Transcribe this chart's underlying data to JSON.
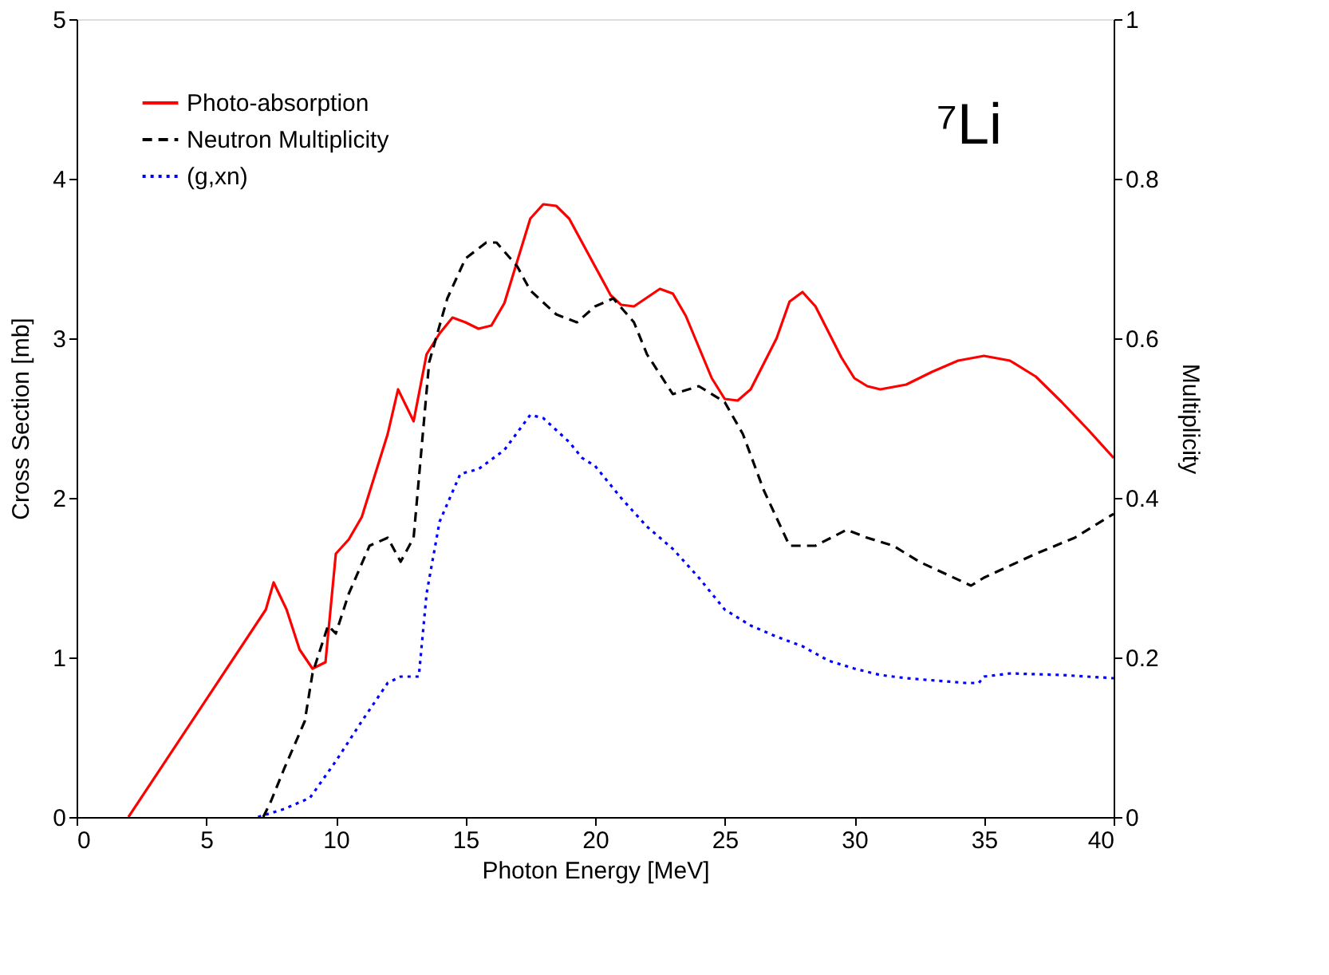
{
  "chart_data": {
    "type": "line",
    "xlabel": "Photon Energy [MeV]",
    "ylabel": "Cross Section [mb]",
    "y2label": "Multiplicity",
    "annotations": [
      "⁷Li"
    ],
    "xlim": [
      0,
      40
    ],
    "xticks": [
      0,
      5,
      10,
      15,
      20,
      25,
      30,
      35,
      40
    ],
    "ylim": [
      0,
      5
    ],
    "yticks": [
      0,
      1,
      2,
      3,
      4,
      5
    ],
    "y2lim": [
      0,
      1
    ],
    "y2ticks": [
      0,
      0.2,
      0.4,
      0.6,
      0.8,
      1
    ],
    "grid": false,
    "legend": "top left",
    "marker": "none",
    "series": [
      {
        "name": "Photo-absorption",
        "color": "#ff0000",
        "line_style": "solid",
        "x": [
          2,
          7.3,
          7.6,
          8.1,
          8.6,
          9.1,
          9.6,
          10,
          10.5,
          11,
          12,
          12.4,
          13,
          13.5,
          14,
          14.5,
          15,
          15.5,
          16,
          16.5,
          17.5,
          18,
          18.5,
          19,
          20,
          20.6,
          21,
          21.5,
          22.5,
          23,
          23.5,
          24.5,
          25,
          25.5,
          26,
          27,
          27.5,
          28,
          28.5,
          29.5,
          30,
          30.5,
          31,
          32,
          33,
          34,
          35,
          36,
          37,
          38,
          39,
          40
        ],
        "values": [
          0,
          1.3,
          1.47,
          1.3,
          1.05,
          0.93,
          0.97,
          1.65,
          1.74,
          1.88,
          2.4,
          2.68,
          2.48,
          2.9,
          3.03,
          3.13,
          3.1,
          3.06,
          3.08,
          3.22,
          3.75,
          3.84,
          3.83,
          3.75,
          3.45,
          3.27,
          3.21,
          3.2,
          3.31,
          3.28,
          3.14,
          2.75,
          2.62,
          2.61,
          2.68,
          3.0,
          3.23,
          3.29,
          3.2,
          2.88,
          2.75,
          2.7,
          2.68,
          2.71,
          2.79,
          2.86,
          2.89,
          2.86,
          2.76,
          2.6,
          2.43,
          2.25
        ]
      },
      {
        "name": "Neutron Multiplicity",
        "color": "#000000",
        "line_style": "dashed",
        "axis": "y2",
        "x": [
          7.2,
          7.5,
          8,
          8.8,
          9.1,
          9.7,
          10,
          10.5,
          11.3,
          12,
          12.5,
          13,
          13.3,
          13.6,
          14.3,
          15,
          15.8,
          16.2,
          17,
          17.5,
          18.5,
          19.3,
          20,
          20.7,
          21.5,
          22,
          23,
          24,
          25,
          25.7,
          26.5,
          27.5,
          28.5,
          29.7,
          30.5,
          31.5,
          32.5,
          34.5,
          35,
          37,
          38.5,
          40
        ],
        "values": [
          0,
          0.02,
          0.06,
          0.12,
          0.18,
          0.24,
          0.23,
          0.28,
          0.34,
          0.35,
          0.32,
          0.35,
          0.46,
          0.57,
          0.65,
          0.7,
          0.72,
          0.72,
          0.69,
          0.66,
          0.63,
          0.62,
          0.64,
          0.65,
          0.62,
          0.58,
          0.53,
          0.54,
          0.52,
          0.48,
          0.41,
          0.34,
          0.34,
          0.36,
          0.35,
          0.34,
          0.32,
          0.29,
          0.3,
          0.33,
          0.35,
          0.38
        ]
      },
      {
        "name": "(g,xn)",
        "color": "#0000ff",
        "line_style": "dotted",
        "x": [
          7,
          8,
          9,
          10,
          11,
          12,
          12.5,
          13.2,
          13.5,
          14,
          14.8,
          15.5,
          16.5,
          17.5,
          18,
          19,
          19.5,
          20,
          21,
          22,
          23,
          24,
          25,
          26,
          27,
          28,
          29,
          30,
          31,
          32,
          34.3,
          34.8,
          35,
          36,
          38,
          40
        ],
        "values": [
          0,
          0.05,
          0.12,
          0.35,
          0.6,
          0.84,
          0.88,
          0.88,
          1.4,
          1.85,
          2.15,
          2.18,
          2.3,
          2.52,
          2.5,
          2.35,
          2.25,
          2.2,
          2.0,
          1.82,
          1.68,
          1.5,
          1.3,
          1.2,
          1.13,
          1.07,
          0.98,
          0.93,
          0.89,
          0.87,
          0.84,
          0.84,
          0.88,
          0.9,
          0.89,
          0.87
        ]
      }
    ]
  }
}
